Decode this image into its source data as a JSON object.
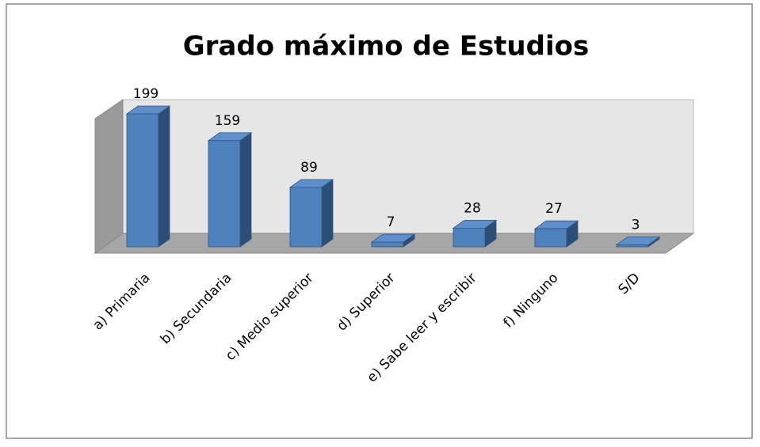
{
  "chart_data": {
    "type": "bar3d",
    "title": "Grado máximo de Estudios",
    "categories": [
      "a) Primaria",
      "b) Secundaria",
      "c) Medio superior",
      "d) Superior",
      "e) Sabe leer y escribir",
      "f) Ninguno",
      "S/D"
    ],
    "values": [
      199,
      159,
      89,
      7,
      28,
      27,
      3
    ],
    "color": "#4f81bd"
  }
}
